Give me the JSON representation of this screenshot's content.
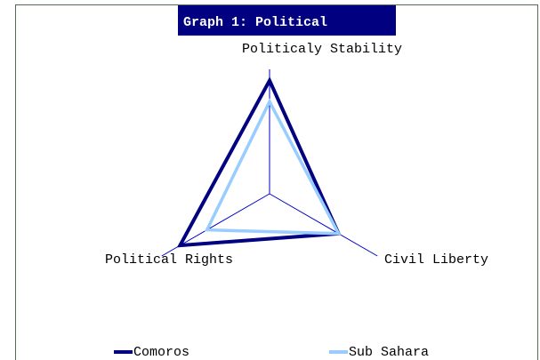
{
  "chart_data": {
    "type": "radar",
    "title": "Graph 1:  Political",
    "categories": [
      "Politicaly Stability",
      "Civil Liberty",
      "Political Rights"
    ],
    "series": [
      {
        "name": "Comoros",
        "color": "#000080",
        "values": [
          0.91,
          0.64,
          0.83
        ]
      },
      {
        "name": "Sub Sahara",
        "color": "#99ccff",
        "values": [
          0.74,
          0.64,
          0.58
        ]
      }
    ],
    "rlim": [
      0,
      1
    ],
    "legend": "bottom"
  }
}
